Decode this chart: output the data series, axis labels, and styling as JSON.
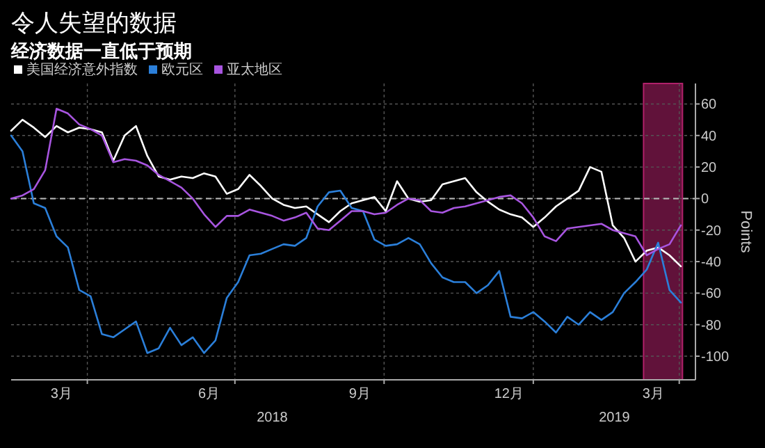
{
  "chart_data": {
    "type": "line",
    "title": "令人失望的数据",
    "subtitle": "经济数据一直低于预期",
    "ylabel": "Points",
    "legend": "top left",
    "grid": true,
    "line_style": "solid",
    "marker": "none",
    "xlim": [
      "2018-02-13",
      "2019-04-11"
    ],
    "xticks": [
      {
        "value": "2018-03-16",
        "label": "3月"
      },
      {
        "value": "2018-04-01",
        "label": null
      },
      {
        "value": "2018-06-15",
        "label": "6月"
      },
      {
        "value": "2018-07-01",
        "label": null
      },
      {
        "value": "2018-09-16",
        "label": "9月"
      },
      {
        "value": "2018-10-01",
        "label": null
      },
      {
        "value": "2018-12-17",
        "label": "12月"
      },
      {
        "value": "2019-01-01",
        "label": null
      },
      {
        "value": "2019-03-16",
        "label": "3月"
      },
      {
        "value": "2019-04-01",
        "label": null
      }
    ],
    "ylim": [
      -115,
      73
    ],
    "yticks": [
      60,
      40,
      20,
      0,
      -20,
      -40,
      -60,
      -80,
      -100
    ],
    "annotations": [
      "2018",
      "2019"
    ],
    "ref_lines": [
      {
        "axis": "y",
        "value": 0,
        "label": null,
        "color": "#bbbbbb",
        "line_style": "dashed"
      }
    ],
    "bands": [
      {
        "axis": "x",
        "from": "2019-03-10",
        "to": "2019-04-03",
        "label": null,
        "color": "#b0206a"
      }
    ],
    "x": [
      "2018-02-13",
      "2018-02-20",
      "2018-02-27",
      "2018-03-06",
      "2018-03-13",
      "2018-03-20",
      "2018-03-27",
      "2018-04-03",
      "2018-04-10",
      "2018-04-17",
      "2018-04-24",
      "2018-05-01",
      "2018-05-08",
      "2018-05-15",
      "2018-05-22",
      "2018-05-29",
      "2018-06-05",
      "2018-06-12",
      "2018-06-19",
      "2018-06-26",
      "2018-07-03",
      "2018-07-10",
      "2018-07-17",
      "2018-07-24",
      "2018-07-31",
      "2018-08-07",
      "2018-08-14",
      "2018-08-21",
      "2018-08-28",
      "2018-09-04",
      "2018-09-11",
      "2018-09-18",
      "2018-09-25",
      "2018-10-02",
      "2018-10-09",
      "2018-10-16",
      "2018-10-23",
      "2018-10-30",
      "2018-11-06",
      "2018-11-13",
      "2018-11-20",
      "2018-11-27",
      "2018-12-04",
      "2018-12-11",
      "2018-12-18",
      "2018-12-25",
      "2019-01-01",
      "2019-01-08",
      "2019-01-15",
      "2019-01-22",
      "2019-01-29",
      "2019-02-05",
      "2019-02-12",
      "2019-02-19",
      "2019-02-26",
      "2019-03-05",
      "2019-03-12",
      "2019-03-19",
      "2019-03-26",
      "2019-04-02"
    ],
    "series": [
      {
        "name": "美国经济意外指数",
        "color": "#ffffff",
        "values": [
          43,
          50,
          45,
          39,
          46,
          42,
          45,
          44,
          42,
          24,
          40,
          46,
          27,
          14,
          12,
          14,
          13,
          16,
          14,
          3,
          6,
          15,
          8,
          0,
          -4,
          -6,
          -5,
          -10,
          -15,
          -8,
          -3,
          -1,
          1,
          -8,
          11,
          0,
          -2,
          -1,
          9,
          11,
          13,
          4,
          -2,
          -7,
          -10,
          -12,
          -18,
          -12,
          -5,
          0,
          5,
          20,
          17,
          -17,
          -25,
          -40,
          -33,
          -31,
          -36,
          -43
        ]
      },
      {
        "name": "欧元区",
        "color": "#2b7fd9",
        "values": [
          40,
          30,
          -3,
          -6,
          -24,
          -31,
          -58,
          -62,
          -86,
          -88,
          -83,
          -78,
          -98,
          -95,
          -82,
          -93,
          -88,
          -98,
          -90,
          -63,
          -53,
          -36,
          -35,
          -32,
          -29,
          -30,
          -25,
          -5,
          4,
          5,
          -6,
          -8,
          -26,
          -30,
          -29,
          -25,
          -29,
          -41,
          -50,
          -53,
          -53,
          -60,
          -55,
          -46,
          -75,
          -76,
          -72,
          -78,
          -85,
          -75,
          -80,
          -72,
          -77,
          -72,
          -60,
          -53,
          -45,
          -28,
          -58,
          -66
        ]
      },
      {
        "name": "亚太地区",
        "color": "#a855e0",
        "values": [
          0,
          2,
          6,
          18,
          57,
          54,
          47,
          44,
          40,
          23,
          25,
          24,
          21,
          15,
          11,
          7,
          0,
          -10,
          -18,
          -11,
          -11,
          -7,
          -9,
          -11,
          -14,
          -12,
          -9,
          -19,
          -20,
          -14,
          -8,
          -8,
          -10,
          -9,
          -4,
          0,
          -1,
          -8,
          -9,
          -6,
          -5,
          -3,
          -1,
          1,
          2,
          -3,
          -12,
          -24,
          -27,
          -19,
          -18,
          -17,
          -16,
          -20,
          -22,
          -24,
          -36,
          -32,
          -29,
          -17
        ]
      }
    ]
  }
}
